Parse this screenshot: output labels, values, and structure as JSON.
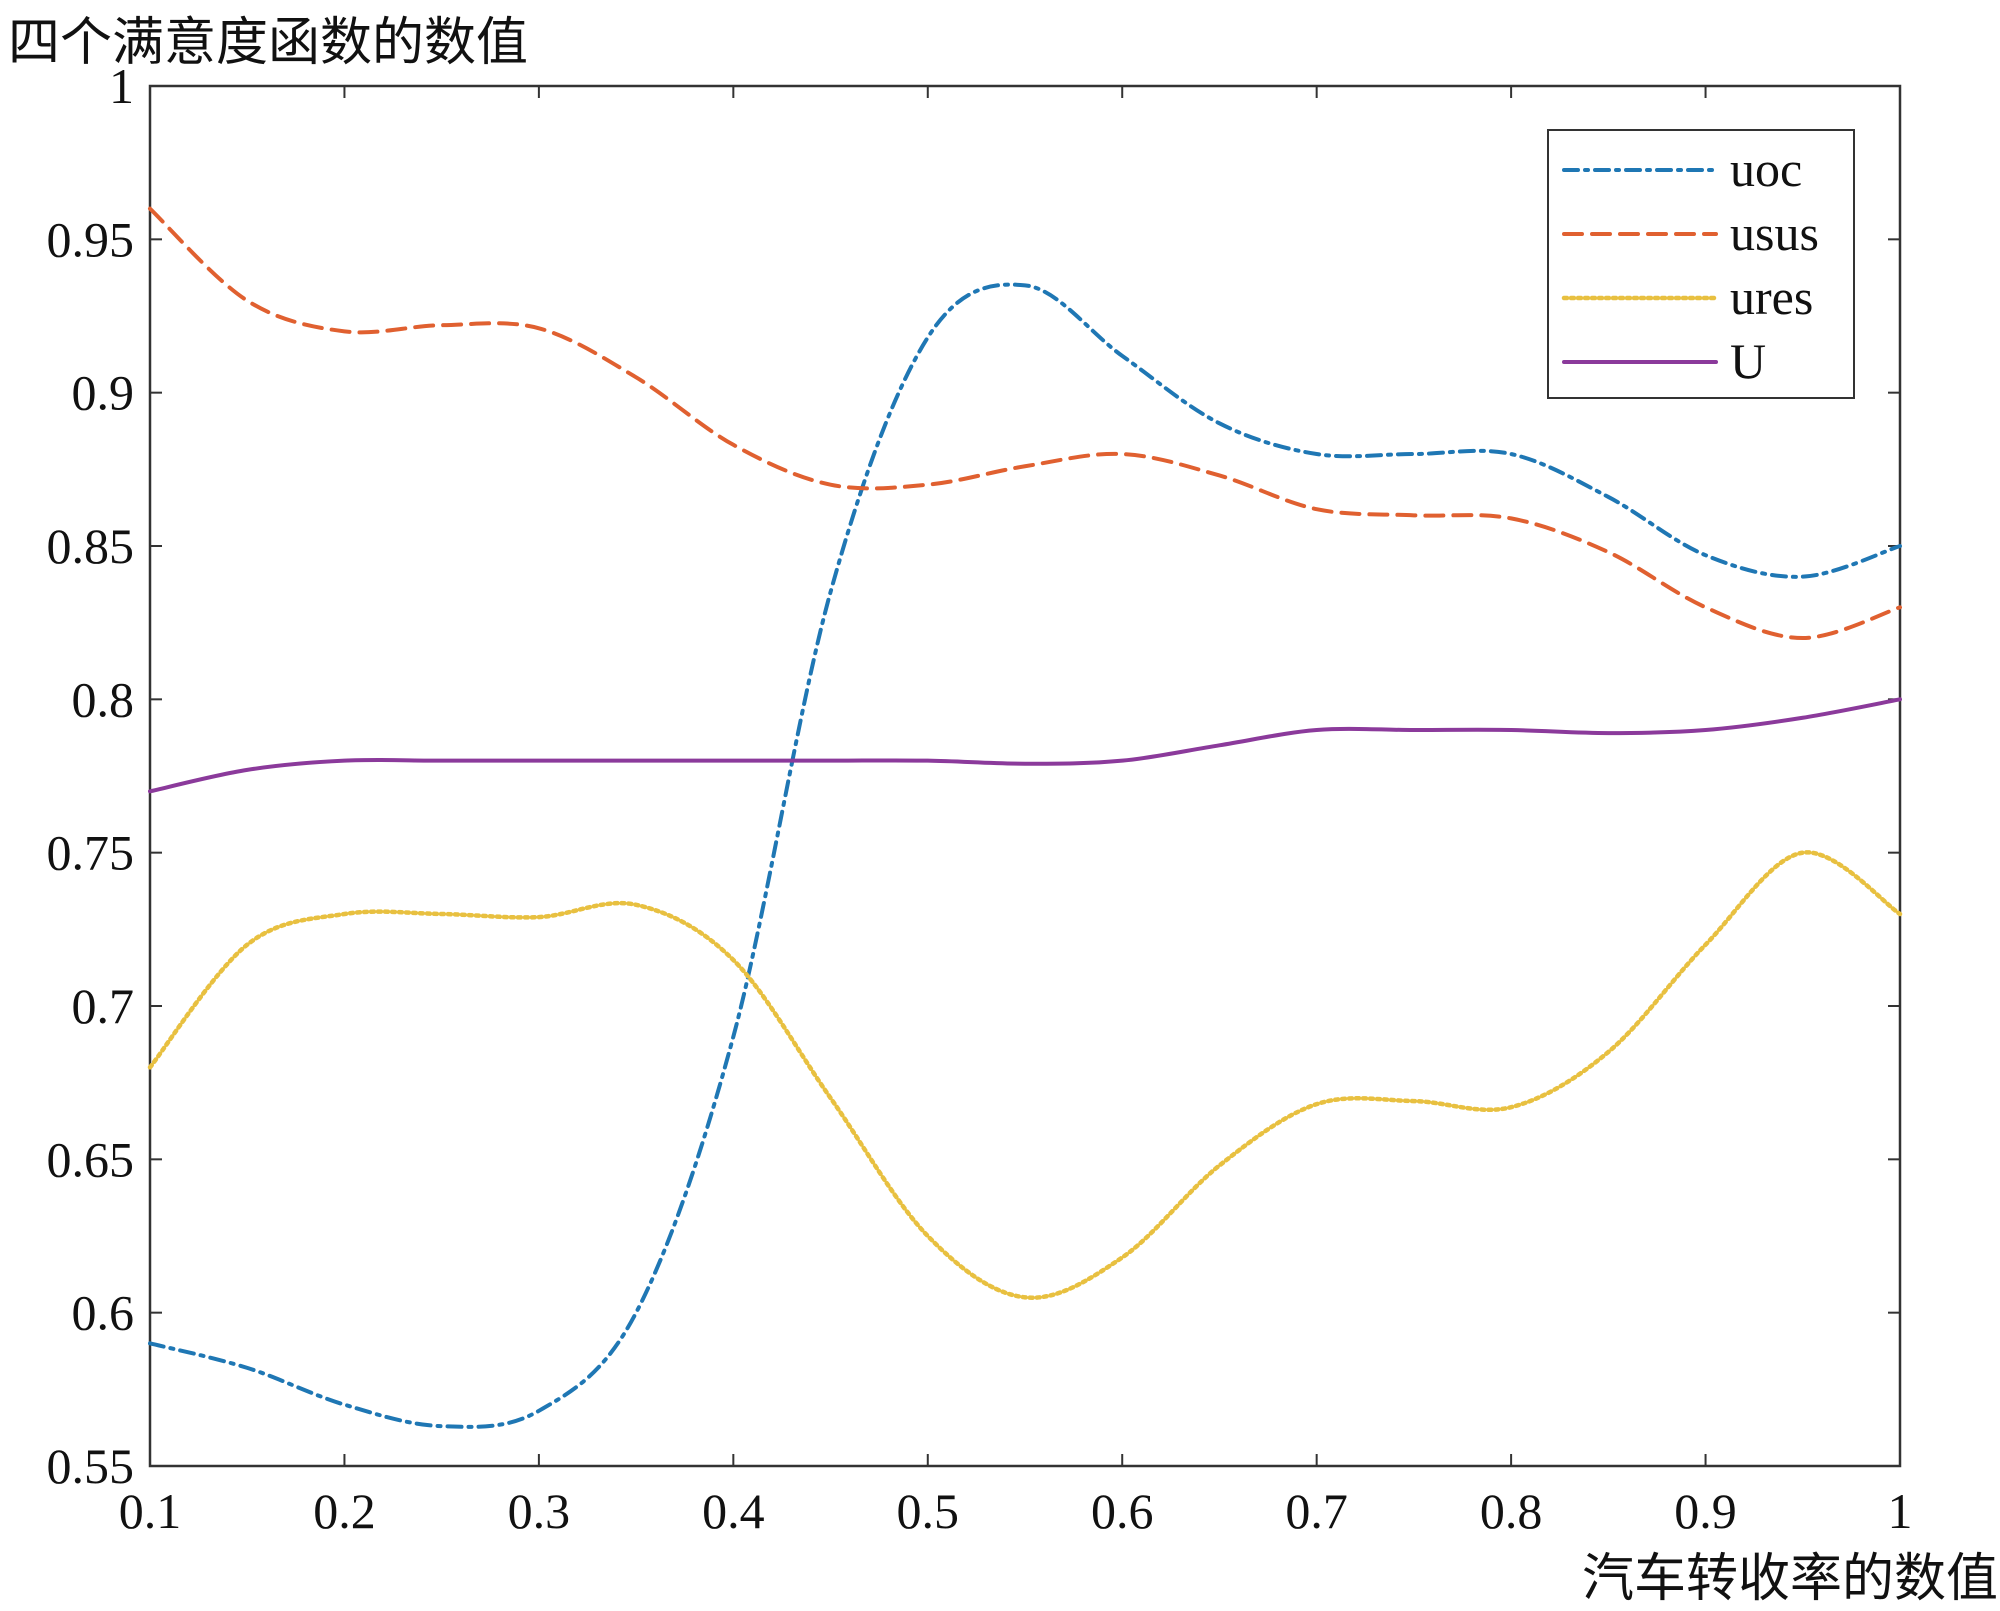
{
  "chart_data": {
    "type": "line",
    "ylabel": "四个满意度函数的数值",
    "xlabel": "汽车转收率的数值",
    "xlim": [
      0.1,
      1.0
    ],
    "ylim": [
      0.55,
      1.0
    ],
    "xticks": [
      "0.1",
      "0.2",
      "0.3",
      "0.4",
      "0.5",
      "0.6",
      "0.7",
      "0.8",
      "0.9",
      "1"
    ],
    "yticks": [
      "0.55",
      "0.6",
      "0.65",
      "0.7",
      "0.75",
      "0.8",
      "0.85",
      "0.9",
      "0.95",
      "1"
    ],
    "grid": false,
    "legend_position": "top-right",
    "series": [
      {
        "name": "uoc",
        "color": "#1f77b4",
        "style": "dash-dot",
        "points": [
          [
            0.1,
            0.59
          ],
          [
            0.15,
            0.582
          ],
          [
            0.2,
            0.57
          ],
          [
            0.25,
            0.563
          ],
          [
            0.3,
            0.568
          ],
          [
            0.35,
            0.6
          ],
          [
            0.4,
            0.69
          ],
          [
            0.45,
            0.835
          ],
          [
            0.5,
            0.918
          ],
          [
            0.55,
            0.935
          ],
          [
            0.6,
            0.912
          ],
          [
            0.65,
            0.89
          ],
          [
            0.7,
            0.88
          ],
          [
            0.75,
            0.88
          ],
          [
            0.8,
            0.88
          ],
          [
            0.85,
            0.866
          ],
          [
            0.9,
            0.847
          ],
          [
            0.95,
            0.84
          ],
          [
            1.0,
            0.85
          ]
        ]
      },
      {
        "name": "usus",
        "color": "#e06030",
        "style": "dashed",
        "points": [
          [
            0.1,
            0.96
          ],
          [
            0.15,
            0.93
          ],
          [
            0.2,
            0.92
          ],
          [
            0.25,
            0.922
          ],
          [
            0.3,
            0.921
          ],
          [
            0.35,
            0.905
          ],
          [
            0.4,
            0.883
          ],
          [
            0.45,
            0.87
          ],
          [
            0.5,
            0.87
          ],
          [
            0.55,
            0.876
          ],
          [
            0.6,
            0.88
          ],
          [
            0.65,
            0.873
          ],
          [
            0.7,
            0.862
          ],
          [
            0.75,
            0.86
          ],
          [
            0.8,
            0.859
          ],
          [
            0.85,
            0.848
          ],
          [
            0.9,
            0.83
          ],
          [
            0.95,
            0.82
          ],
          [
            1.0,
            0.83
          ]
        ]
      },
      {
        "name": "ures",
        "color": "#e8c040",
        "style": "dotted",
        "points": [
          [
            0.1,
            0.68
          ],
          [
            0.15,
            0.72
          ],
          [
            0.2,
            0.73
          ],
          [
            0.25,
            0.73
          ],
          [
            0.3,
            0.729
          ],
          [
            0.35,
            0.733
          ],
          [
            0.4,
            0.715
          ],
          [
            0.45,
            0.67
          ],
          [
            0.5,
            0.625
          ],
          [
            0.55,
            0.605
          ],
          [
            0.6,
            0.618
          ],
          [
            0.65,
            0.648
          ],
          [
            0.7,
            0.668
          ],
          [
            0.75,
            0.669
          ],
          [
            0.8,
            0.667
          ],
          [
            0.85,
            0.685
          ],
          [
            0.9,
            0.72
          ],
          [
            0.95,
            0.75
          ],
          [
            1.0,
            0.73
          ]
        ]
      },
      {
        "name": "U",
        "color": "#8b3a9b",
        "style": "solid",
        "points": [
          [
            0.1,
            0.77
          ],
          [
            0.15,
            0.777
          ],
          [
            0.2,
            0.78
          ],
          [
            0.25,
            0.78
          ],
          [
            0.3,
            0.78
          ],
          [
            0.35,
            0.78
          ],
          [
            0.4,
            0.78
          ],
          [
            0.45,
            0.78
          ],
          [
            0.5,
            0.78
          ],
          [
            0.55,
            0.779
          ],
          [
            0.6,
            0.78
          ],
          [
            0.65,
            0.785
          ],
          [
            0.7,
            0.79
          ],
          [
            0.75,
            0.79
          ],
          [
            0.8,
            0.79
          ],
          [
            0.85,
            0.789
          ],
          [
            0.9,
            0.79
          ],
          [
            0.95,
            0.794
          ],
          [
            1.0,
            0.8
          ]
        ]
      }
    ]
  }
}
